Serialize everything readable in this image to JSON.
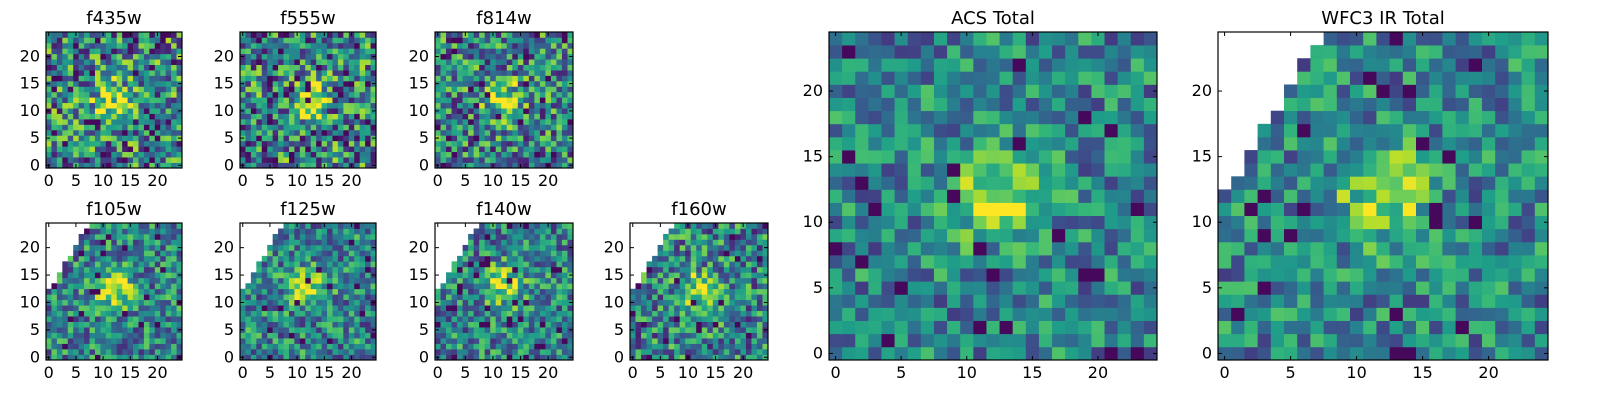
{
  "chart_data": [
    {
      "type": "heatmap",
      "title": "f435w",
      "x_ticks": [
        "0",
        "5",
        "10",
        "15",
        "20"
      ],
      "y_ticks": [
        "0",
        "5",
        "10",
        "15",
        "20"
      ],
      "xlim": [
        -0.5,
        24.5
      ],
      "ylim": [
        -0.5,
        24.5
      ],
      "grid": false,
      "colormap": "viridis",
      "grid_size": 25,
      "peak": [
        12,
        12
      ],
      "blank_corner": false,
      "noise": 0.55,
      "seed": 11
    },
    {
      "type": "heatmap",
      "title": "f555w",
      "x_ticks": [
        "0",
        "5",
        "10",
        "15",
        "20"
      ],
      "y_ticks": [
        "0",
        "5",
        "10",
        "15",
        "20"
      ],
      "xlim": [
        -0.5,
        24.5
      ],
      "ylim": [
        -0.5,
        24.5
      ],
      "grid": false,
      "colormap": "viridis",
      "grid_size": 25,
      "peak": [
        12,
        12
      ],
      "blank_corner": false,
      "noise": 0.55,
      "seed": 23
    },
    {
      "type": "heatmap",
      "title": "f814w",
      "x_ticks": [
        "0",
        "5",
        "10",
        "15",
        "20"
      ],
      "y_ticks": [
        "0",
        "5",
        "10",
        "15",
        "20"
      ],
      "xlim": [
        -0.5,
        24.5
      ],
      "ylim": [
        -0.5,
        24.5
      ],
      "grid": false,
      "colormap": "viridis",
      "grid_size": 25,
      "peak": [
        12,
        12
      ],
      "blank_corner": false,
      "noise": 0.5,
      "seed": 37
    },
    {
      "type": "heatmap",
      "title": "f105w",
      "x_ticks": [
        "0",
        "5",
        "10",
        "15",
        "20"
      ],
      "y_ticks": [
        "0",
        "5",
        "10",
        "15",
        "20"
      ],
      "xlim": [
        -0.5,
        24.5
      ],
      "ylim": [
        -0.5,
        24.5
      ],
      "grid": false,
      "colormap": "viridis",
      "grid_size": 25,
      "peak": [
        12,
        12
      ],
      "blank_corner": true,
      "noise": 0.4,
      "seed": 41
    },
    {
      "type": "heatmap",
      "title": "f125w",
      "x_ticks": [
        "0",
        "5",
        "10",
        "15",
        "20"
      ],
      "y_ticks": [
        "0",
        "5",
        "10",
        "15",
        "20"
      ],
      "xlim": [
        -0.5,
        24.5
      ],
      "ylim": [
        -0.5,
        24.5
      ],
      "grid": false,
      "colormap": "viridis",
      "grid_size": 25,
      "peak": [
        12,
        13
      ],
      "blank_corner": true,
      "noise": 0.4,
      "seed": 53
    },
    {
      "type": "heatmap",
      "title": "f140w",
      "x_ticks": [
        "0",
        "5",
        "10",
        "15",
        "20"
      ],
      "y_ticks": [
        "0",
        "5",
        "10",
        "15",
        "20"
      ],
      "xlim": [
        -0.5,
        24.5
      ],
      "ylim": [
        -0.5,
        24.5
      ],
      "grid": false,
      "colormap": "viridis",
      "grid_size": 25,
      "peak": [
        12,
        13
      ],
      "blank_corner": true,
      "noise": 0.4,
      "seed": 67
    },
    {
      "type": "heatmap",
      "title": "f160w",
      "x_ticks": [
        "0",
        "5",
        "10",
        "15",
        "20"
      ],
      "y_ticks": [
        "0",
        "5",
        "10",
        "15",
        "20"
      ],
      "xlim": [
        -0.5,
        24.5
      ],
      "ylim": [
        -0.5,
        24.5
      ],
      "grid": false,
      "colormap": "viridis",
      "grid_size": 25,
      "peak": [
        12,
        12
      ],
      "blank_corner": true,
      "noise": 0.45,
      "seed": 79
    },
    {
      "type": "heatmap",
      "title": "ACS Total",
      "x_ticks": [
        "0",
        "5",
        "10",
        "15",
        "20"
      ],
      "y_ticks": [
        "0",
        "5",
        "10",
        "15",
        "20"
      ],
      "xlim": [
        -0.5,
        24.5
      ],
      "ylim": [
        -0.5,
        24.5
      ],
      "grid": false,
      "colormap": "viridis",
      "grid_size": 25,
      "peak": [
        12,
        12
      ],
      "blank_corner": false,
      "noise": 0.35,
      "seed": 83
    },
    {
      "type": "heatmap",
      "title": "WFC3 IR Total",
      "x_ticks": [
        "0",
        "5",
        "10",
        "15",
        "20"
      ],
      "y_ticks": [
        "0",
        "5",
        "10",
        "15",
        "20"
      ],
      "xlim": [
        -0.5,
        24.5
      ],
      "ylim": [
        -0.5,
        24.5
      ],
      "grid": false,
      "colormap": "viridis",
      "grid_size": 25,
      "peak": [
        12,
        12
      ],
      "blank_corner": true,
      "noise": 0.35,
      "seed": 97
    }
  ]
}
